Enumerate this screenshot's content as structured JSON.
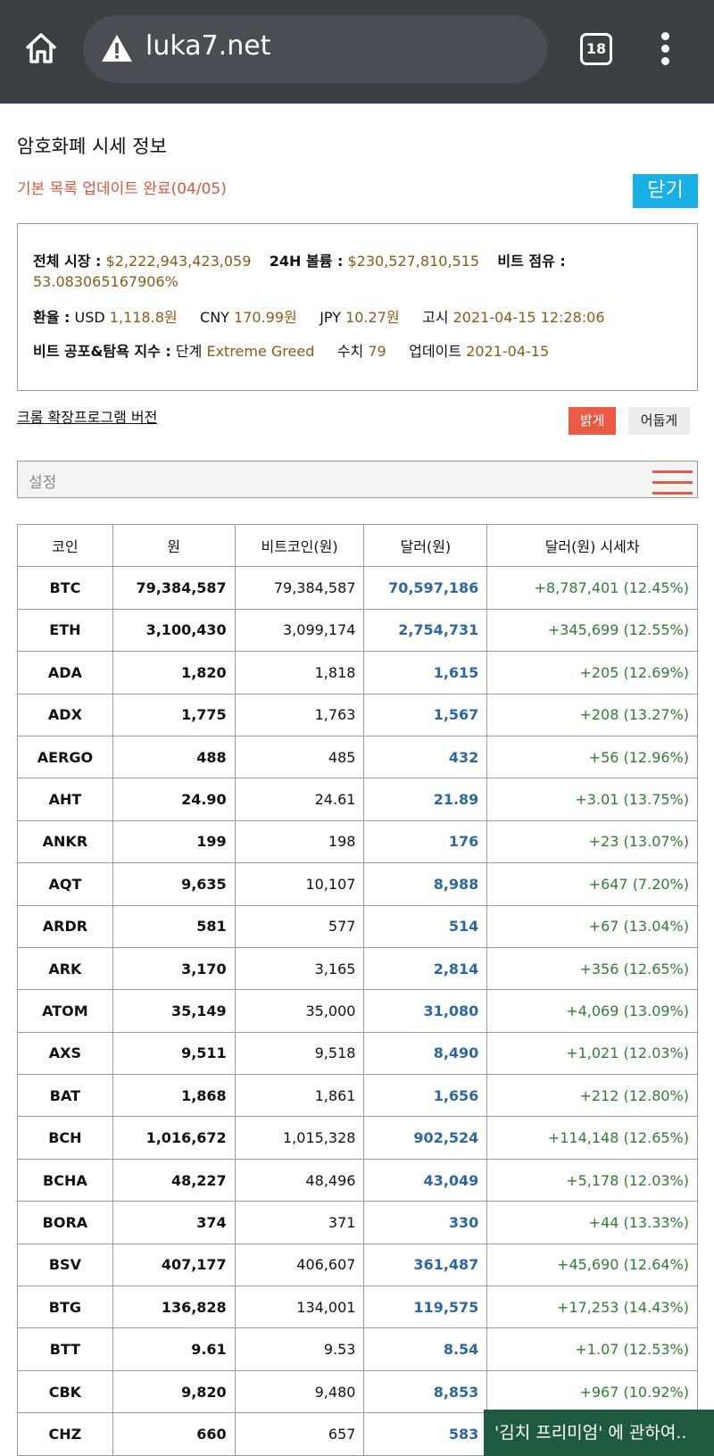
{
  "browser": {
    "url": "luka7.net",
    "tab_count": "18"
  },
  "page": {
    "title": "암호화폐 시세 정보",
    "status": "기본 목록 업데이트 완료(04/05)",
    "close_label": "닫기"
  },
  "market": {
    "total_label": "전체 시장 :",
    "total_value": "$2,222,943,423,059",
    "volume_label": "24H 볼륨 :",
    "volume_value": "$230,527,810,515",
    "dominance_label": "비트 점유 :",
    "dominance_value": "53.083065167906%",
    "fx_label": "환율 :",
    "usd_label": "USD",
    "usd_value": "1,118.8원",
    "cny_label": "CNY",
    "cny_value": "170.99원",
    "jpy_label": "JPY",
    "jpy_value": "10.27원",
    "notice_label": "고시",
    "notice_value": "2021-04-15 12:28:06",
    "fg_label": "비트 공포&탐욕 지수 :",
    "stage_label": "단계",
    "stage_value": "Extreme Greed",
    "index_label": "수치",
    "index_value": "79",
    "update_label": "업데이트",
    "update_value": "2021-04-15"
  },
  "controls": {
    "extension_link": "크롬 확장프로그램 버전",
    "light_label": "밝게",
    "dark_label": "어둡게",
    "settings_placeholder": "설정"
  },
  "table": {
    "headers": [
      "코인",
      "원",
      "비트코인(원)",
      "달러(원)",
      "달러(원) 시세차"
    ],
    "rows": [
      [
        "BTC",
        "79,384,587",
        "79,384,587",
        "70,597,186",
        "+8,787,401 (12.45%)"
      ],
      [
        "ETH",
        "3,100,430",
        "3,099,174",
        "2,754,731",
        "+345,699 (12.55%)"
      ],
      [
        "ADA",
        "1,820",
        "1,818",
        "1,615",
        "+205 (12.69%)"
      ],
      [
        "ADX",
        "1,775",
        "1,763",
        "1,567",
        "+208 (13.27%)"
      ],
      [
        "AERGO",
        "488",
        "485",
        "432",
        "+56 (12.96%)"
      ],
      [
        "AHT",
        "24.90",
        "24.61",
        "21.89",
        "+3.01 (13.75%)"
      ],
      [
        "ANKR",
        "199",
        "198",
        "176",
        "+23 (13.07%)"
      ],
      [
        "AQT",
        "9,635",
        "10,107",
        "8,988",
        "+647 (7.20%)"
      ],
      [
        "ARDR",
        "581",
        "577",
        "514",
        "+67 (13.04%)"
      ],
      [
        "ARK",
        "3,170",
        "3,165",
        "2,814",
        "+356 (12.65%)"
      ],
      [
        "ATOM",
        "35,149",
        "35,000",
        "31,080",
        "+4,069 (13.09%)"
      ],
      [
        "AXS",
        "9,511",
        "9,518",
        "8,490",
        "+1,021 (12.03%)"
      ],
      [
        "BAT",
        "1,868",
        "1,861",
        "1,656",
        "+212 (12.80%)"
      ],
      [
        "BCH",
        "1,016,672",
        "1,015,328",
        "902,524",
        "+114,148 (12.65%)"
      ],
      [
        "BCHA",
        "48,227",
        "48,496",
        "43,049",
        "+5,178 (12.03%)"
      ],
      [
        "BORA",
        "374",
        "371",
        "330",
        "+44 (13.33%)"
      ],
      [
        "BSV",
        "407,177",
        "406,607",
        "361,487",
        "+45,690 (12.64%)"
      ],
      [
        "BTG",
        "136,828",
        "134,001",
        "119,575",
        "+17,253 (14.43%)"
      ],
      [
        "BTT",
        "9.61",
        "9.53",
        "8.54",
        "+1.07 (12.53%)"
      ],
      [
        "CBK",
        "9,820",
        "9,480",
        "8,853",
        "+967 (10.92%)"
      ],
      [
        "CHZ",
        "660",
        "657",
        "583",
        ""
      ]
    ]
  },
  "toast": {
    "text": "'김치 프리미엄' 에 관하여.."
  },
  "colors": {
    "chrome_bg": "#3c4043",
    "close_button": "#17b0e6",
    "light_button": "#ec5a45",
    "value_text": "#8a5a16",
    "dollar_text": "#2b67a3",
    "diff_text": "#2e7d32",
    "toast_bg": "#1e5a40"
  }
}
